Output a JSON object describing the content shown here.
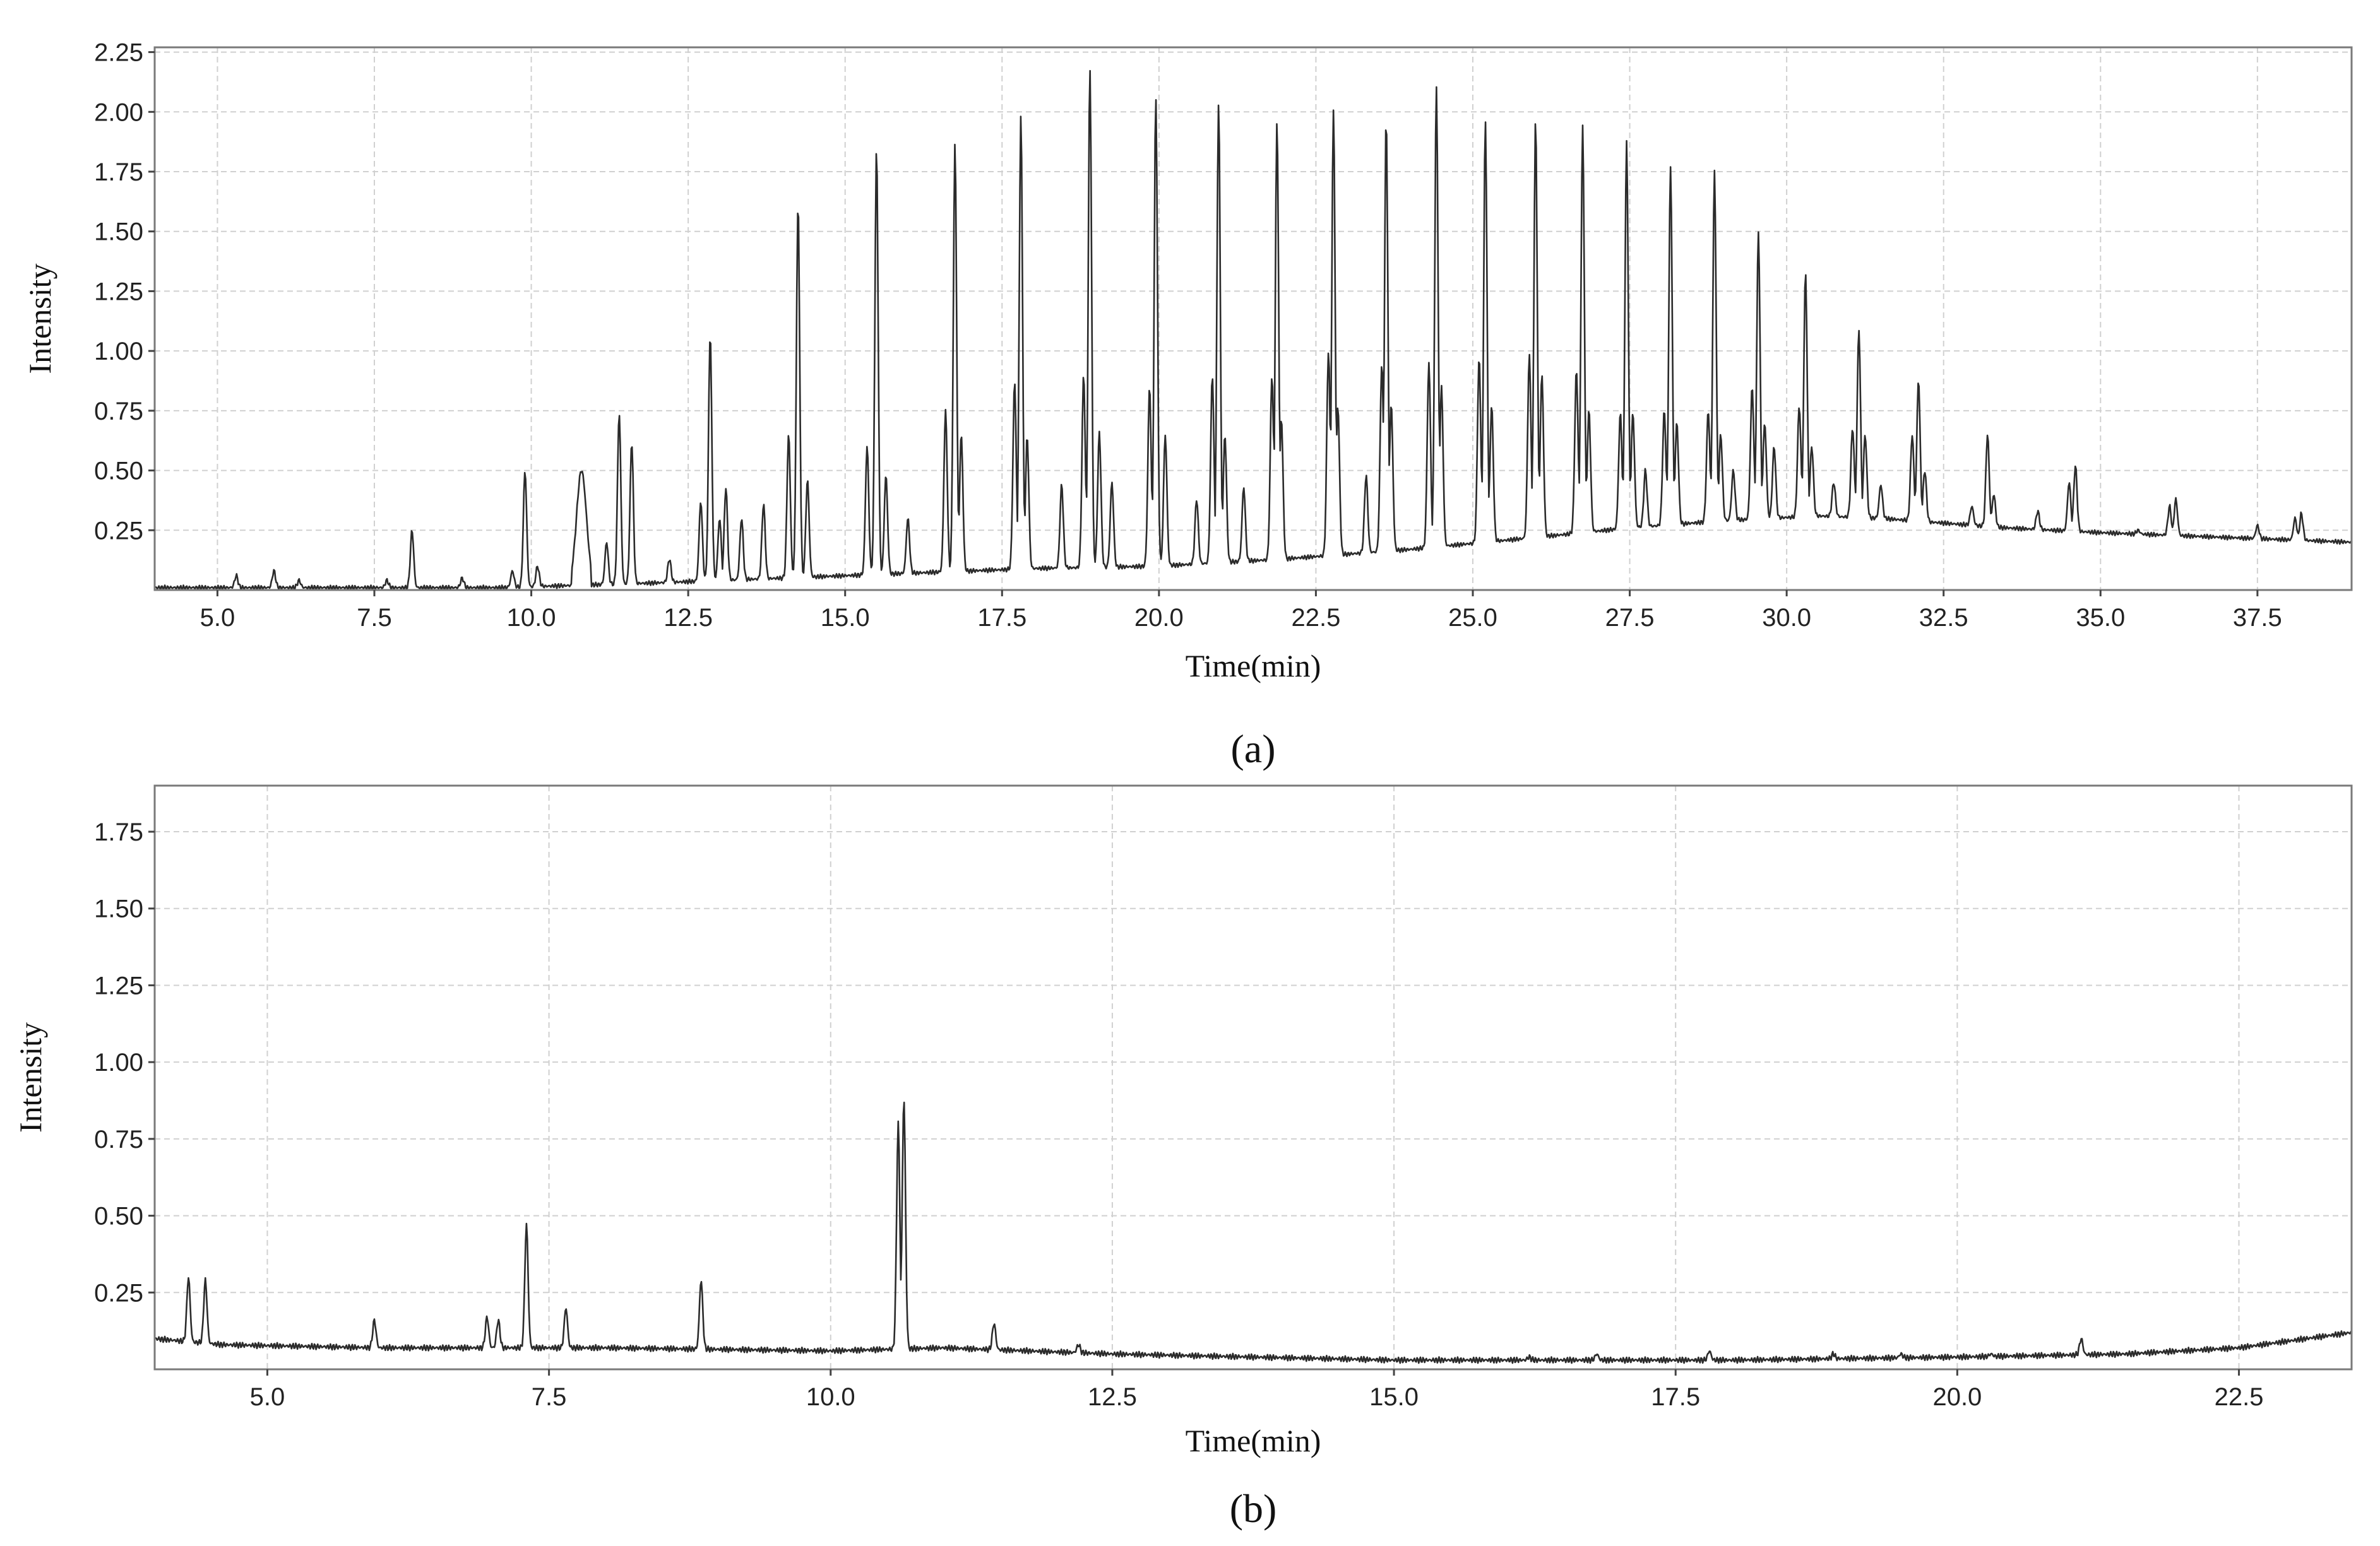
{
  "chart_data": [
    {
      "type": "line",
      "panel_label": "(a)",
      "xlabel": "Time(min)",
      "ylabel": "Intensity",
      "xlim": [
        4.0,
        39.0
      ],
      "ylim": [
        0.0,
        2.27
      ],
      "xticks": [
        "5.0",
        "7.5",
        "10.0",
        "12.5",
        "15.0",
        "17.5",
        "20.0",
        "22.5",
        "25.0",
        "27.5",
        "30.0",
        "32.5",
        "35.0",
        "37.5"
      ],
      "yticks": [
        "0.25",
        "0.50",
        "0.75",
        "1.00",
        "1.25",
        "1.50",
        "1.75",
        "2.00",
        "2.25"
      ],
      "grid": true,
      "baseline": [
        [
          4.0,
          0.01
        ],
        [
          9.5,
          0.01
        ],
        [
          12.0,
          0.03
        ],
        [
          14.0,
          0.05
        ],
        [
          16.0,
          0.07
        ],
        [
          18.0,
          0.09
        ],
        [
          20.0,
          0.1
        ],
        [
          22.0,
          0.13
        ],
        [
          24.0,
          0.17
        ],
        [
          26.0,
          0.22
        ],
        [
          27.5,
          0.26
        ],
        [
          29.0,
          0.29
        ],
        [
          30.5,
          0.31
        ],
        [
          31.5,
          0.3
        ],
        [
          32.5,
          0.28
        ],
        [
          33.5,
          0.26
        ],
        [
          35.0,
          0.24
        ],
        [
          37.0,
          0.22
        ],
        [
          39.0,
          0.2
        ]
      ],
      "peaks": [
        [
          5.3,
          0.06
        ],
        [
          5.9,
          0.08
        ],
        [
          6.3,
          0.04
        ],
        [
          7.7,
          0.04
        ],
        [
          8.1,
          0.25
        ],
        [
          8.9,
          0.05
        ],
        [
          9.7,
          0.08
        ],
        [
          9.9,
          0.5
        ],
        [
          10.1,
          0.1
        ],
        [
          10.8,
          0.5
        ],
        [
          11.2,
          0.2
        ],
        [
          11.4,
          0.74
        ],
        [
          11.6,
          0.62
        ],
        [
          12.2,
          0.13
        ],
        [
          12.7,
          0.37
        ],
        [
          12.85,
          1.07
        ],
        [
          13.0,
          0.3
        ],
        [
          13.1,
          0.43
        ],
        [
          13.35,
          0.3
        ],
        [
          13.7,
          0.36
        ],
        [
          14.1,
          0.65
        ],
        [
          14.25,
          1.62
        ],
        [
          14.4,
          0.46
        ],
        [
          15.35,
          0.6
        ],
        [
          15.5,
          1.84
        ],
        [
          15.65,
          0.48
        ],
        [
          16.0,
          0.3
        ],
        [
          16.6,
          0.75
        ],
        [
          16.75,
          1.86
        ],
        [
          16.85,
          0.65
        ],
        [
          17.7,
          0.87
        ],
        [
          17.8,
          1.98
        ],
        [
          17.9,
          0.64
        ],
        [
          18.45,
          0.44
        ],
        [
          18.8,
          0.9
        ],
        [
          18.9,
          2.18
        ],
        [
          19.05,
          0.66
        ],
        [
          19.25,
          0.45
        ],
        [
          19.85,
          0.85
        ],
        [
          19.95,
          2.06
        ],
        [
          20.1,
          0.65
        ],
        [
          20.6,
          0.38
        ],
        [
          20.85,
          0.9
        ],
        [
          20.95,
          2.04
        ],
        [
          21.05,
          0.65
        ],
        [
          21.35,
          0.43
        ],
        [
          21.8,
          0.9
        ],
        [
          21.88,
          1.96
        ],
        [
          21.95,
          0.72
        ],
        [
          22.7,
          1.0
        ],
        [
          22.78,
          2.01
        ],
        [
          22.85,
          0.77
        ],
        [
          23.3,
          0.48
        ],
        [
          23.55,
          0.95
        ],
        [
          23.62,
          1.97
        ],
        [
          23.7,
          0.78
        ],
        [
          24.3,
          0.95
        ],
        [
          24.42,
          2.1
        ],
        [
          24.5,
          0.85
        ],
        [
          25.1,
          0.97
        ],
        [
          25.2,
          1.96
        ],
        [
          25.3,
          0.77
        ],
        [
          25.9,
          0.98
        ],
        [
          26.0,
          1.96
        ],
        [
          26.1,
          0.9
        ],
        [
          26.65,
          0.92
        ],
        [
          26.75,
          1.94
        ],
        [
          26.85,
          0.75
        ],
        [
          27.35,
          0.74
        ],
        [
          27.45,
          1.87
        ],
        [
          27.55,
          0.74
        ],
        [
          27.75,
          0.5
        ],
        [
          28.05,
          0.75
        ],
        [
          28.15,
          1.77
        ],
        [
          28.25,
          0.7
        ],
        [
          28.75,
          0.75
        ],
        [
          28.85,
          1.75
        ],
        [
          28.95,
          0.65
        ],
        [
          29.15,
          0.5
        ],
        [
          29.45,
          0.85
        ],
        [
          29.55,
          1.5
        ],
        [
          29.65,
          0.7
        ],
        [
          29.8,
          0.6
        ],
        [
          30.2,
          0.77
        ],
        [
          30.3,
          1.33
        ],
        [
          30.4,
          0.6
        ],
        [
          30.75,
          0.45
        ],
        [
          31.05,
          0.68
        ],
        [
          31.15,
          1.09
        ],
        [
          31.25,
          0.65
        ],
        [
          31.5,
          0.44
        ],
        [
          32.0,
          0.65
        ],
        [
          32.1,
          0.88
        ],
        [
          32.2,
          0.5
        ],
        [
          32.95,
          0.35
        ],
        [
          33.2,
          0.65
        ],
        [
          33.3,
          0.4
        ],
        [
          34.0,
          0.33
        ],
        [
          34.5,
          0.45
        ],
        [
          34.6,
          0.52
        ],
        [
          35.6,
          0.25
        ],
        [
          36.1,
          0.35
        ],
        [
          36.2,
          0.38
        ],
        [
          37.5,
          0.27
        ],
        [
          38.1,
          0.3
        ],
        [
          38.2,
          0.32
        ]
      ]
    },
    {
      "type": "line",
      "panel_label": "(b)",
      "xlabel": "Time(min)",
      "ylabel": "Intensity",
      "xlim": [
        4.0,
        23.5
      ],
      "ylim": [
        0.0,
        1.9
      ],
      "xticks": [
        "5.0",
        "7.5",
        "10.0",
        "12.5",
        "15.0",
        "17.5",
        "20.0",
        "22.5"
      ],
      "yticks": [
        "0.25",
        "0.50",
        "0.75",
        "1.00",
        "1.25",
        "1.50",
        "1.75"
      ],
      "grid": true,
      "baseline": [
        [
          4.0,
          0.1
        ],
        [
          4.6,
          0.08
        ],
        [
          6.0,
          0.07
        ],
        [
          8.0,
          0.07
        ],
        [
          10.0,
          0.06
        ],
        [
          11.0,
          0.07
        ],
        [
          12.5,
          0.05
        ],
        [
          15.0,
          0.03
        ],
        [
          18.0,
          0.03
        ],
        [
          20.0,
          0.04
        ],
        [
          21.5,
          0.05
        ],
        [
          22.5,
          0.07
        ],
        [
          23.5,
          0.12
        ]
      ],
      "peaks": [
        [
          4.3,
          0.3
        ],
        [
          4.45,
          0.29
        ],
        [
          5.95,
          0.16
        ],
        [
          6.95,
          0.17
        ],
        [
          7.05,
          0.16
        ],
        [
          7.3,
          0.47
        ],
        [
          7.65,
          0.2
        ],
        [
          8.85,
          0.29
        ],
        [
          10.6,
          0.8
        ],
        [
          10.65,
          0.88
        ],
        [
          11.45,
          0.15
        ],
        [
          12.2,
          0.08
        ],
        [
          16.2,
          0.04
        ],
        [
          16.8,
          0.05
        ],
        [
          17.8,
          0.06
        ],
        [
          18.9,
          0.05
        ],
        [
          19.5,
          0.05
        ],
        [
          20.3,
          0.05
        ],
        [
          21.1,
          0.1
        ]
      ]
    }
  ]
}
